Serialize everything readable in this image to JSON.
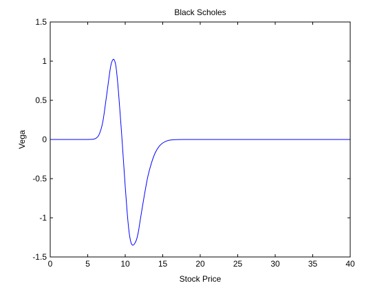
{
  "chart_data": {
    "type": "line",
    "title": "Black Scholes",
    "xlabel": "Stock Price",
    "ylabel": "Vega",
    "xlim": [
      0,
      40
    ],
    "ylim": [
      -1.5,
      1.5
    ],
    "xticks": [
      0,
      5,
      10,
      15,
      20,
      25,
      30,
      35,
      40
    ],
    "xtick_labels": [
      "0",
      "5",
      "10",
      "15",
      "20",
      "25",
      "30",
      "35",
      "40"
    ],
    "yticks": [
      -1.5,
      -1,
      -0.5,
      0,
      0.5,
      1,
      1.5
    ],
    "ytick_labels": [
      "-1.5",
      "-1",
      "-0.5",
      "0",
      "0.5",
      "1",
      "1.5"
    ],
    "grid": false,
    "series": [
      {
        "color": "#0000ff",
        "x": [
          0,
          2,
          4,
          5,
          5.5,
          6,
          6.5,
          7,
          7.5,
          8,
          8.25,
          8.5,
          8.75,
          9,
          9.25,
          9.5,
          9.75,
          10,
          10.25,
          10.5,
          10.75,
          11,
          11.25,
          11.5,
          11.75,
          12,
          12.5,
          13,
          13.5,
          14,
          14.5,
          15,
          15.5,
          16,
          16.5,
          17,
          18,
          20,
          25,
          30,
          35,
          40
        ],
        "y": [
          0,
          0,
          0,
          0,
          0.002,
          0.01,
          0.06,
          0.22,
          0.55,
          0.9,
          1.0,
          1.02,
          0.94,
          0.72,
          0.42,
          0.1,
          -0.25,
          -0.6,
          -0.92,
          -1.17,
          -1.31,
          -1.35,
          -1.33,
          -1.28,
          -1.18,
          -1.03,
          -0.74,
          -0.48,
          -0.3,
          -0.17,
          -0.09,
          -0.045,
          -0.02,
          -0.008,
          -0.003,
          -0.001,
          0,
          0,
          0,
          0,
          0,
          0
        ]
      }
    ]
  }
}
